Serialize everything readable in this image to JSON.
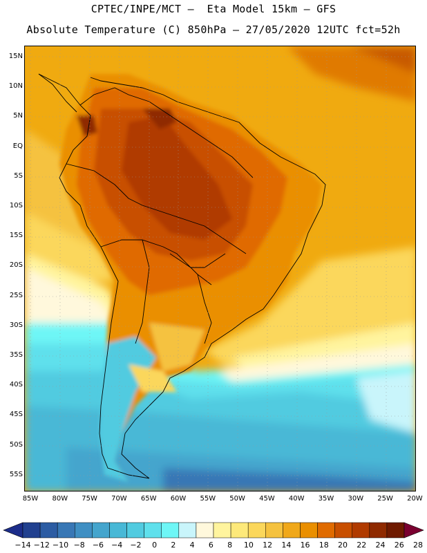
{
  "header": {
    "line1": "CPTEC/INPE/MCT –  Eta Model 15km – GFS",
    "line2": "Absolute Temperature (C) 850hPa – 27/05/2020 12UTC fct=52h"
  },
  "map": {
    "region": "South America",
    "lat_labels": [
      "15N",
      "10N",
      "5N",
      "EQ",
      "5S",
      "10S",
      "15S",
      "20S",
      "25S",
      "30S",
      "35S",
      "40S",
      "45S",
      "50S",
      "55S"
    ],
    "lon_labels": [
      "85W",
      "80W",
      "75W",
      "70W",
      "65W",
      "60W",
      "55W",
      "50W",
      "45W",
      "40W",
      "35W",
      "30W",
      "25W",
      "20W"
    ]
  },
  "colorbar": {
    "labels": [
      "-14",
      "-12",
      "-10",
      "-8",
      "-6",
      "-4",
      "-2",
      "0",
      "2",
      "4",
      "6",
      "8",
      "10",
      "12",
      "14",
      "16",
      "18",
      "20",
      "22",
      "24",
      "26",
      "28"
    ],
    "colors": [
      "#21408f",
      "#2c5ca3",
      "#3877b5",
      "#3f8fc3",
      "#44a5cd",
      "#48b8d6",
      "#51cbe0",
      "#5fe0ec",
      "#6ef6f6",
      "#c9f5fb",
      "#fff8dc",
      "#fff49e",
      "#fde97a",
      "#fbd75b",
      "#f5c23f",
      "#f0a81a",
      "#ea8f00",
      "#e06b00",
      "#c84f00",
      "#b03b00",
      "#8f2a00",
      "#6f1a00"
    ],
    "over_color": "#7a0030",
    "under_color": "#1c2d8a"
  },
  "palette": {
    "ocean_far": "#f0aa10",
    "land_hot": "#b04a10",
    "coast_line": "#000000"
  }
}
